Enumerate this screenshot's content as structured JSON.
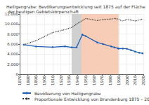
{
  "chart_data": {
    "type": "line",
    "title": "Heiligengrabe: Bevölkerungsentwicklung seit 1875 auf der Fläche der heutigen Gebietskörperschaft",
    "x": [
      1875,
      1890,
      1910,
      1925,
      1933,
      1939,
      1946,
      1950,
      1964,
      1971,
      1981,
      1985,
      1989,
      1990,
      1995,
      2000,
      2005,
      2010,
      2015,
      2019
    ],
    "series": [
      {
        "name": "Bevölkerung von Heiligengrabe",
        "color": "#1f5fb4",
        "marker": "circle",
        "line_style": "solid",
        "values": [
          5878,
          5521,
          5401,
          5545,
          5364,
          5373,
          7920,
          7603,
          6323,
          6009,
          5536,
          5342,
          5173,
          5101,
          5100,
          5064,
          4788,
          4504,
          4279,
          4160
        ]
      },
      {
        "name": "Proportionale Entwicklung von Brandenburg 1875 – 2019",
        "color": "#333333",
        "marker": "none",
        "line_style": "dotted",
        "values": [
          5878,
          6700,
          8300,
          8900,
          9300,
          10000,
          10700,
          11100,
          10700,
          10900,
          11000,
          11100,
          11000,
          10900,
          10600,
          10900,
          10800,
          10600,
          10800,
          11000
        ]
      }
    ],
    "periods": [
      {
        "from": 1933,
        "to": 1945,
        "color": "#c8c8c8"
      },
      {
        "from": 1945,
        "to": 1990,
        "color": "#f6c4ac"
      }
    ],
    "xlim": [
      1870,
      2020
    ],
    "xticks": [
      1870,
      1880,
      1890,
      1900,
      1910,
      1920,
      1930,
      1940,
      1950,
      1960,
      1970,
      1980,
      1990,
      2000,
      2010,
      2020
    ],
    "ylim": [
      0,
      12000
    ],
    "yticks": [
      0,
      {
        "value": 2000,
        "label": "2.000"
      },
      {
        "value": 4000,
        "label": "4.000"
      },
      {
        "value": 6000,
        "label": "6.000"
      },
      {
        "value": 8000,
        "label": "8.000"
      },
      {
        "value": 10000,
        "label": "10.000"
      },
      {
        "value": 12000,
        "label": "12.000"
      }
    ],
    "grid": true,
    "legend": "bottom"
  }
}
